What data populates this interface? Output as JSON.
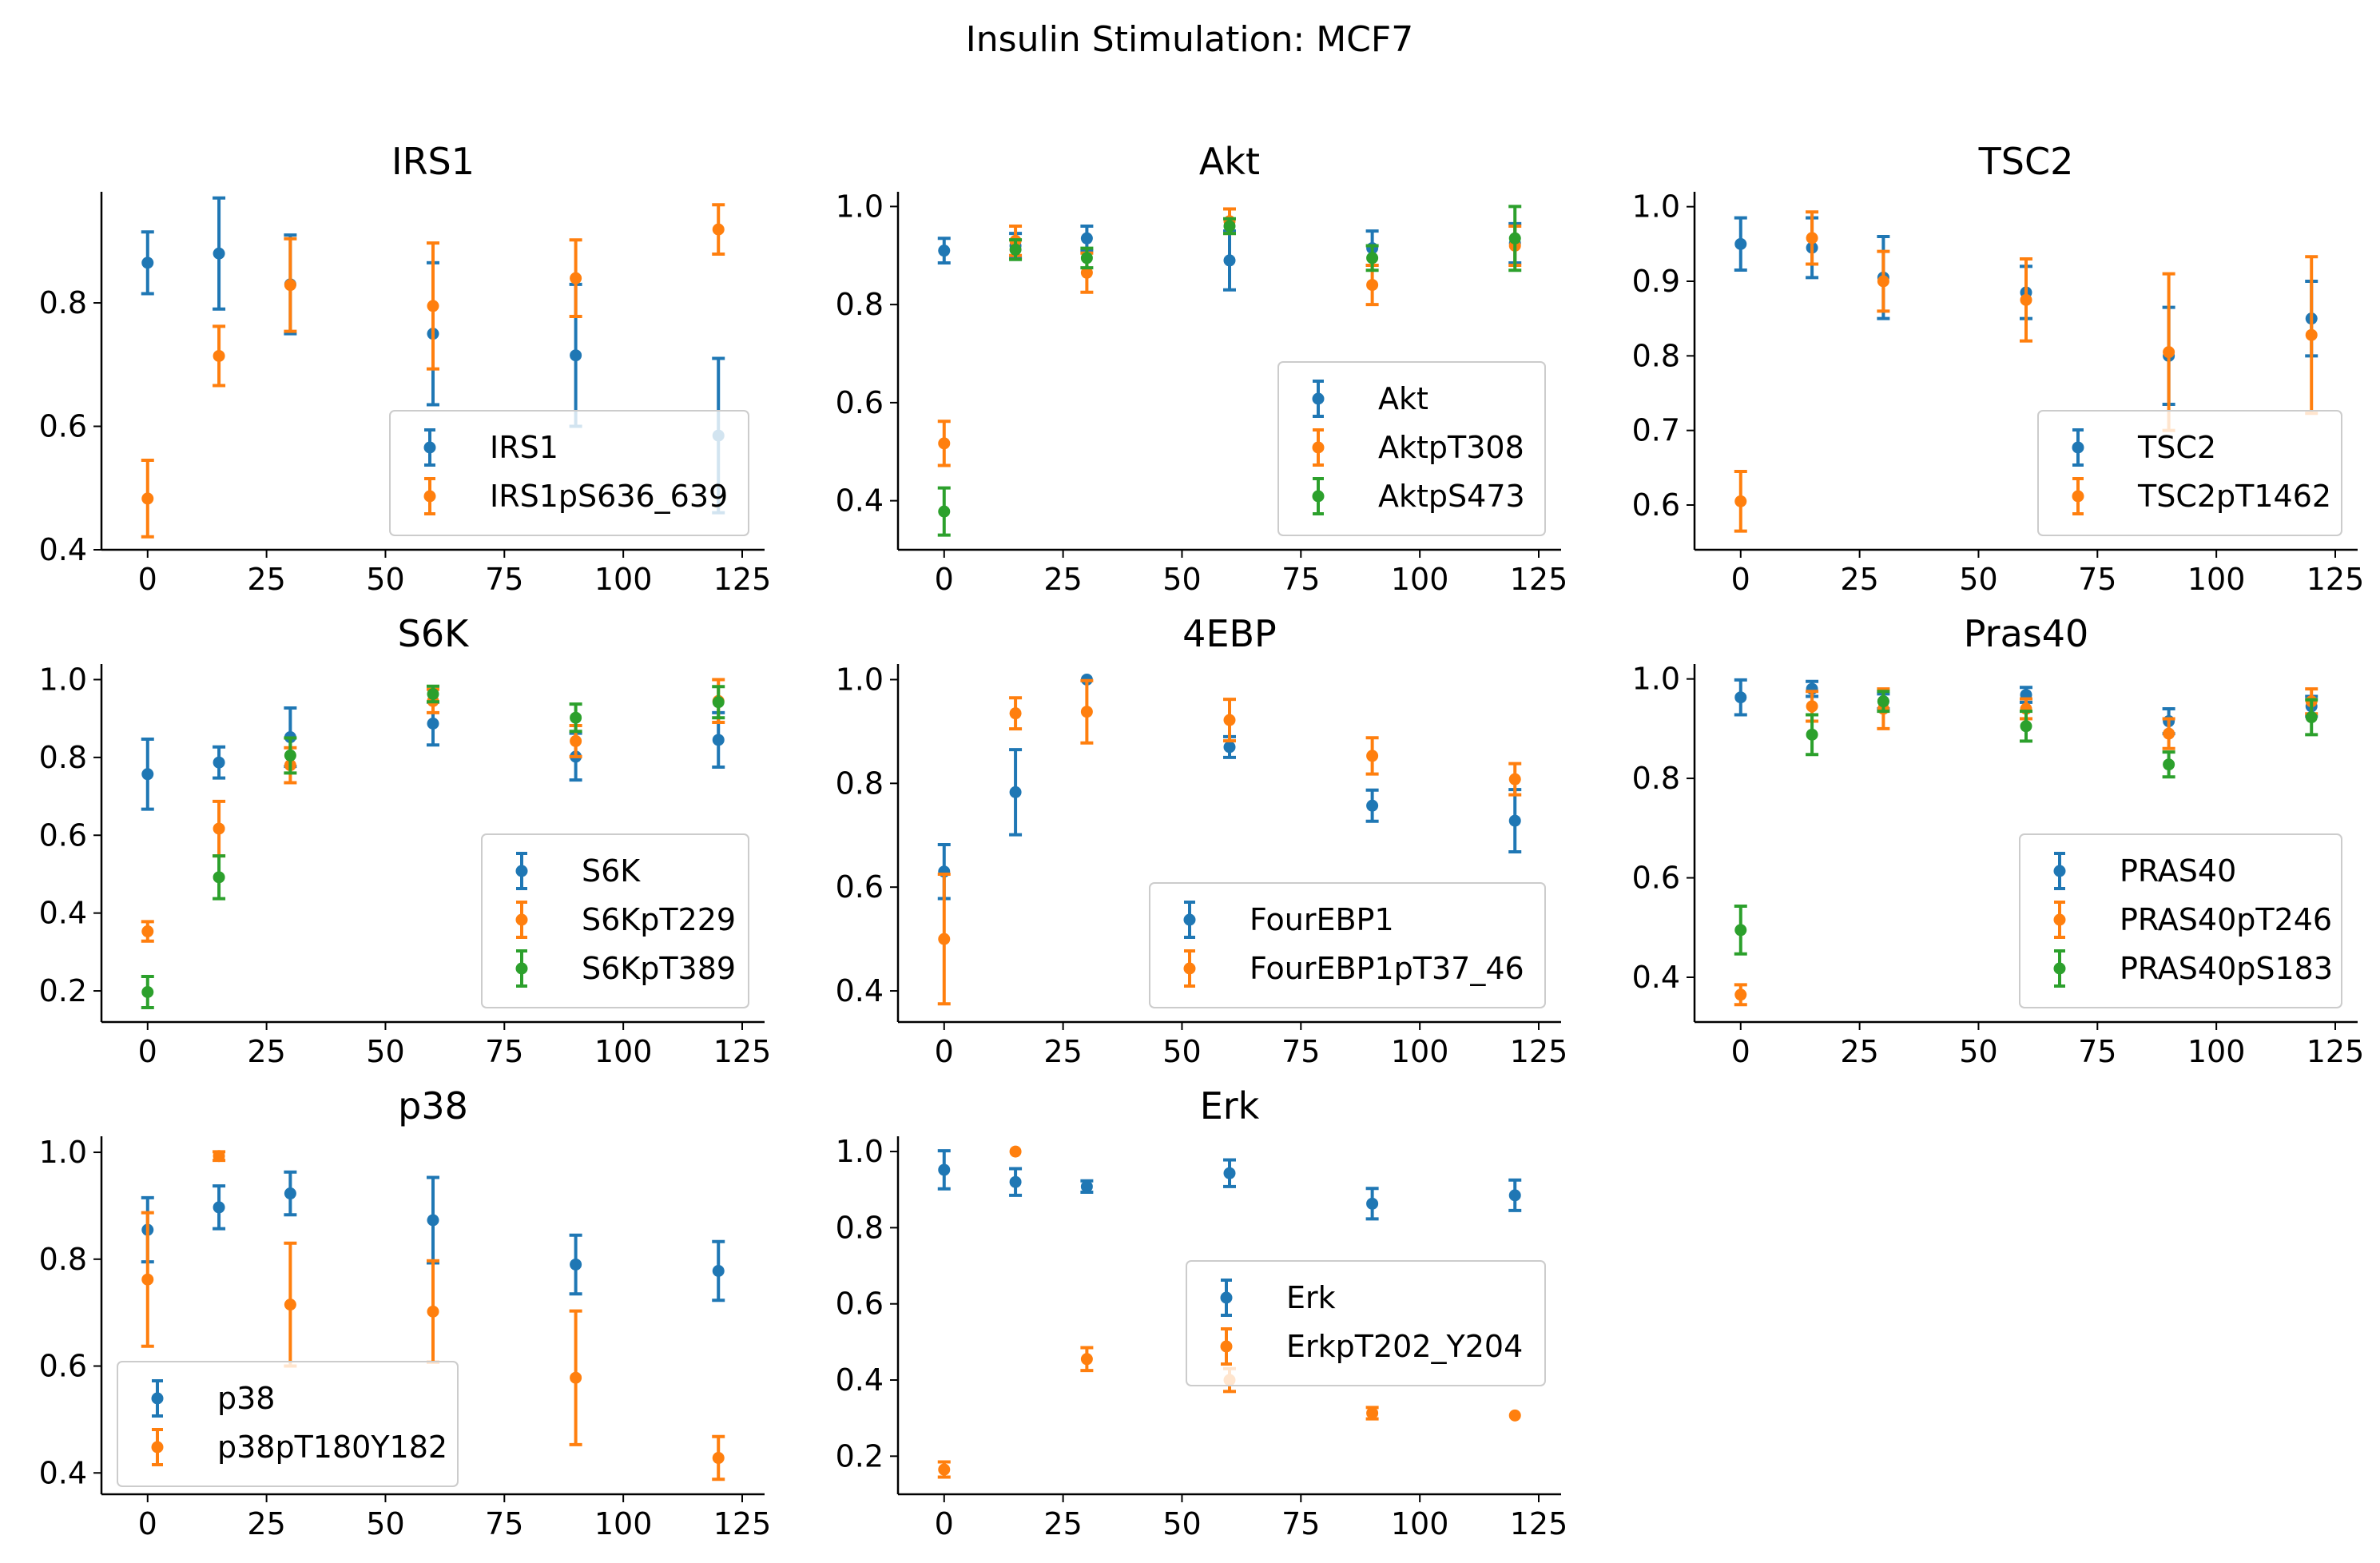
{
  "suptitle": "Insulin Stimulation: MCF7",
  "colors": {
    "C0": "#1f77b4",
    "C1": "#ff7f0e",
    "C2": "#2ca02c"
  },
  "chart_data": [
    {
      "type": "scatter",
      "title": "IRS1",
      "xlim": [
        -5,
        125
      ],
      "ylim": [
        0.4,
        0.98
      ],
      "xticks": [
        "0",
        "25",
        "50",
        "75",
        "100",
        "125"
      ],
      "yticks": [
        "0.4",
        "0.6",
        "0.8"
      ],
      "legend": "lower-right",
      "x": [
        0,
        15,
        30,
        60,
        90,
        120
      ],
      "series": [
        {
          "name": "IRS1",
          "values": [
            0.865,
            0.88,
            0.83,
            0.75,
            0.715,
            0.585
          ],
          "errors": [
            0.05,
            0.09,
            0.08,
            0.115,
            0.115,
            0.125
          ]
        },
        {
          "name": "IRS1pS636_639",
          "values": [
            0.483,
            0.714,
            0.829,
            0.795,
            0.84,
            0.919
          ],
          "errors": [
            0.062,
            0.048,
            0.075,
            0.102,
            0.062,
            0.04
          ]
        }
      ]
    },
    {
      "type": "scatter",
      "title": "Akt",
      "xlim": [
        -5,
        125
      ],
      "ylim": [
        0.3,
        1.03
      ],
      "xticks": [
        "0",
        "25",
        "50",
        "75",
        "100",
        "125"
      ],
      "yticks": [
        "0.4",
        "0.6",
        "0.8",
        "1.0"
      ],
      "legend": "lower-right",
      "x": [
        0,
        15,
        30,
        60,
        90,
        120
      ],
      "series": [
        {
          "name": "Akt",
          "values": [
            0.91,
            0.92,
            0.935,
            0.89,
            0.915,
            0.925
          ],
          "errors": [
            0.025,
            0.025,
            0.025,
            0.06,
            0.035,
            0.04
          ]
        },
        {
          "name": "AktpT308",
          "values": [
            0.517,
            0.93,
            0.865,
            0.97,
            0.84,
            0.92
          ],
          "errors": [
            0.045,
            0.03,
            0.04,
            0.025,
            0.04,
            0.04
          ]
        },
        {
          "name": "AktpS473",
          "values": [
            0.378,
            0.912,
            0.895,
            0.96,
            0.895,
            0.935
          ],
          "errors": [
            0.048,
            0.02,
            0.02,
            0.015,
            0.025,
            0.065
          ]
        }
      ]
    },
    {
      "type": "scatter",
      "title": "TSC2",
      "xlim": [
        -5,
        125
      ],
      "ylim": [
        0.54,
        1.02
      ],
      "xticks": [
        "0",
        "25",
        "50",
        "75",
        "100",
        "125"
      ],
      "yticks": [
        "0.6",
        "0.7",
        "0.8",
        "0.9",
        "1.0"
      ],
      "legend": "lower-right",
      "x": [
        0,
        15,
        30,
        60,
        90,
        120
      ],
      "series": [
        {
          "name": "TSC2",
          "values": [
            0.95,
            0.945,
            0.905,
            0.885,
            0.8,
            0.85
          ],
          "errors": [
            0.035,
            0.04,
            0.055,
            0.035,
            0.065,
            0.05
          ]
        },
        {
          "name": "TSC2pT1462",
          "values": [
            0.605,
            0.958,
            0.9,
            0.875,
            0.805,
            0.828
          ],
          "errors": [
            0.04,
            0.035,
            0.04,
            0.055,
            0.105,
            0.105
          ]
        }
      ]
    },
    {
      "type": "scatter",
      "title": "S6K",
      "xlim": [
        -5,
        125
      ],
      "ylim": [
        0.12,
        1.04
      ],
      "xticks": [
        "0",
        "25",
        "50",
        "75",
        "100",
        "125"
      ],
      "yticks": [
        "0.2",
        "0.4",
        "0.6",
        "0.8",
        "1.0"
      ],
      "legend": "lower-right",
      "x": [
        0,
        15,
        30,
        60,
        90,
        120
      ],
      "series": [
        {
          "name": "S6K",
          "values": [
            0.757,
            0.787,
            0.852,
            0.887,
            0.802,
            0.845
          ],
          "errors": [
            0.09,
            0.04,
            0.075,
            0.055,
            0.06,
            0.07
          ]
        },
        {
          "name": "S6KpT229",
          "values": [
            0.353,
            0.617,
            0.78,
            0.945,
            0.842,
            0.945
          ],
          "errors": [
            0.025,
            0.07,
            0.045,
            0.03,
            0.04,
            0.055
          ]
        },
        {
          "name": "S6KpT389",
          "values": [
            0.197,
            0.492,
            0.805,
            0.963,
            0.902,
            0.942
          ],
          "errors": [
            0.04,
            0.055,
            0.045,
            0.02,
            0.035,
            0.04
          ]
        }
      ]
    },
    {
      "type": "scatter",
      "title": "4EBP",
      "xlim": [
        -5,
        125
      ],
      "ylim": [
        0.34,
        1.03
      ],
      "xticks": [
        "0",
        "25",
        "50",
        "75",
        "100",
        "125"
      ],
      "yticks": [
        "0.4",
        "0.6",
        "0.8",
        "1.0"
      ],
      "legend": "lower-right",
      "x": [
        0,
        15,
        30,
        60,
        90,
        120
      ],
      "series": [
        {
          "name": "FourEBP1",
          "values": [
            0.63,
            0.783,
            1.0,
            0.87,
            0.757,
            0.728
          ],
          "errors": [
            0.052,
            0.082,
            0.0,
            0.02,
            0.03,
            0.06
          ]
        },
        {
          "name": "FourEBP1pT37_46",
          "values": [
            0.5,
            0.935,
            0.938,
            0.922,
            0.853,
            0.808
          ],
          "errors": [
            0.125,
            0.03,
            0.06,
            0.04,
            0.035,
            0.03
          ]
        }
      ]
    },
    {
      "type": "scatter",
      "title": "Pras40",
      "xlim": [
        -5,
        125
      ],
      "ylim": [
        0.31,
        1.03
      ],
      "xticks": [
        "0",
        "25",
        "50",
        "75",
        "100",
        "125"
      ],
      "yticks": [
        "0.4",
        "0.6",
        "0.8",
        "1.0"
      ],
      "legend": "lower-right",
      "x": [
        0,
        15,
        30,
        60,
        90,
        120
      ],
      "series": [
        {
          "name": "PRAS40",
          "values": [
            0.963,
            0.98,
            0.955,
            0.968,
            0.915,
            0.945
          ],
          "errors": [
            0.035,
            0.015,
            0.015,
            0.015,
            0.025,
            0.02
          ]
        },
        {
          "name": "PRAS40pT246",
          "values": [
            0.365,
            0.945,
            0.94,
            0.94,
            0.89,
            0.955
          ],
          "errors": [
            0.02,
            0.03,
            0.04,
            0.02,
            0.03,
            0.025
          ]
        },
        {
          "name": "PRAS40pS183",
          "values": [
            0.495,
            0.888,
            0.955,
            0.905,
            0.828,
            0.923
          ],
          "errors": [
            0.048,
            0.04,
            0.02,
            0.03,
            0.025,
            0.035
          ]
        }
      ]
    },
    {
      "type": "scatter",
      "title": "p38",
      "xlim": [
        -5,
        125
      ],
      "ylim": [
        0.36,
        1.03
      ],
      "xticks": [
        "0",
        "25",
        "50",
        "75",
        "100",
        "125"
      ],
      "yticks": [
        "0.4",
        "0.6",
        "0.8",
        "1.0"
      ],
      "legend": "lower-left",
      "x": [
        0,
        15,
        30,
        60,
        90,
        120
      ],
      "series": [
        {
          "name": "p38",
          "values": [
            0.855,
            0.897,
            0.923,
            0.873,
            0.79,
            0.778
          ],
          "errors": [
            0.06,
            0.04,
            0.04,
            0.08,
            0.055,
            0.055
          ]
        },
        {
          "name": "p38pT180Y182",
          "values": [
            0.762,
            0.993,
            0.715,
            0.702,
            0.578,
            0.428
          ],
          "errors": [
            0.125,
            0.008,
            0.115,
            0.095,
            0.125,
            0.04
          ]
        }
      ]
    },
    {
      "type": "scatter",
      "title": "Erk",
      "xlim": [
        -5,
        125
      ],
      "ylim": [
        0.1,
        1.04
      ],
      "xticks": [
        "0",
        "25",
        "50",
        "75",
        "100",
        "125"
      ],
      "yticks": [
        "0.2",
        "0.4",
        "0.6",
        "0.8",
        "1.0"
      ],
      "legend": "right",
      "x": [
        0,
        15,
        30,
        60,
        90,
        120
      ],
      "series": [
        {
          "name": "Erk",
          "values": [
            0.952,
            0.92,
            0.908,
            0.943,
            0.863,
            0.885
          ],
          "errors": [
            0.05,
            0.035,
            0.015,
            0.035,
            0.04,
            0.04
          ]
        },
        {
          "name": "ErkpT202_Y204",
          "values": [
            0.165,
            1.0,
            0.455,
            0.4,
            0.313,
            0.307
          ],
          "errors": [
            0.02,
            0.0,
            0.03,
            0.03,
            0.015,
            0.0
          ]
        }
      ]
    }
  ]
}
